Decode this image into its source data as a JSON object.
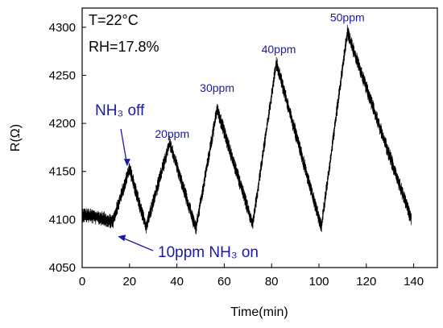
{
  "chart_data": {
    "type": "line",
    "xlabel": "Time(min)",
    "ylabel": "R(Ω)",
    "xlim": [
      0,
      150
    ],
    "ylim": [
      4050,
      4320
    ],
    "x_ticks": [
      0,
      20,
      40,
      60,
      80,
      100,
      120,
      140
    ],
    "y_ticks": [
      4050,
      4100,
      4150,
      4200,
      4250,
      4300
    ],
    "grid": false,
    "conditions": {
      "temperature": "T=22°C",
      "humidity": "RH=17.8%"
    },
    "series": [
      {
        "color": "#000000",
        "noise_amplitude": 8,
        "x": [
          0,
          5,
          10,
          13,
          20,
          27,
          37,
          48,
          57,
          72,
          82,
          101,
          112,
          139
        ],
        "y": [
          4105,
          4103,
          4100,
          4098,
          4153,
          4092,
          4180,
          4090,
          4215,
          4095,
          4263,
          4092,
          4295,
          4100
        ]
      }
    ],
    "annotations": [
      {
        "text": "20ppm",
        "x": 38,
        "y": 4185,
        "color": "#1a1aa8"
      },
      {
        "text": "30ppm",
        "x": 57,
        "y": 4233,
        "color": "#1a1aa8"
      },
      {
        "text": "40ppm",
        "x": 83,
        "y": 4273,
        "color": "#1a1aa8"
      },
      {
        "text": "50ppm",
        "x": 112,
        "y": 4306,
        "color": "#1a1aa8"
      }
    ],
    "callouts": [
      {
        "text": "NH₃ off",
        "x": 19,
        "y": 4153,
        "color": "#1a1aa8"
      },
      {
        "text": "10ppm NH₃ on",
        "x": 13,
        "y": 4085,
        "color": "#1a1aa8"
      }
    ]
  }
}
